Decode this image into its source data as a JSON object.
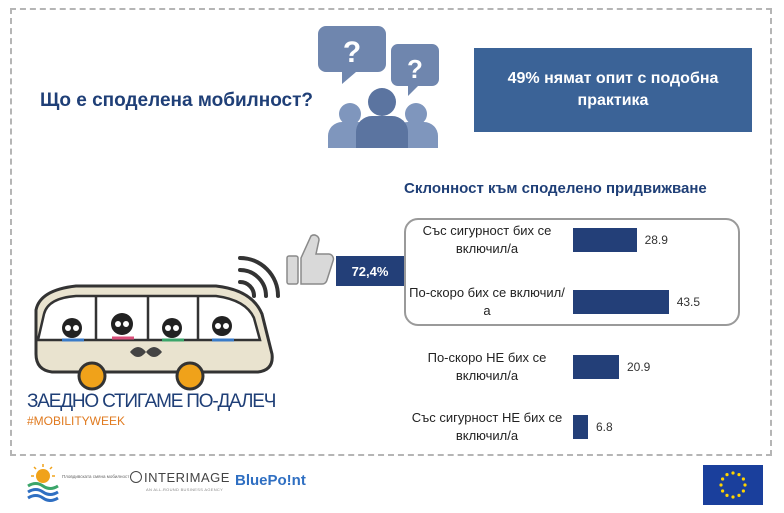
{
  "header": {
    "question": "Що е споделена мобилност?",
    "stat_text": "49% нямат опит с подобна практика"
  },
  "campaign": {
    "highlight_value": "72,4%",
    "slogan": "ЗАЕДНО СТИГАМЕ ПО-ДАЛЕЧ",
    "hashtag": "#MOBILITYWEEK"
  },
  "chart_data": {
    "type": "bar",
    "orientation": "horizontal",
    "title": "Склонност към споделено придвижване",
    "categories": [
      "Със сигурност бих се включил/а",
      "По-скоро бих се включил/а",
      "По-скоро НЕ бих се включил/а",
      "Със сигурност НЕ бих се включил/а"
    ],
    "values": [
      28.9,
      43.5,
      20.9,
      6.8
    ],
    "value_labels": [
      "28.9",
      "43.5",
      "20.9",
      "6.8"
    ],
    "grouped_first_two_total": "72,4%",
    "grid": false,
    "bar_color": "#233f78"
  },
  "footer": {
    "logo1_text": "Пловдивската смяна мобилност",
    "interimage": "INTERIMAGE",
    "interimage_sub": "AN ALL-ROUND BUSINESS AGENCY",
    "bluepoint": "BluePo!nt"
  },
  "colors": {
    "navy": "#1f3f77",
    "bar": "#233f78",
    "stat_box": "#3b6397",
    "accent": "#e07a1f"
  }
}
